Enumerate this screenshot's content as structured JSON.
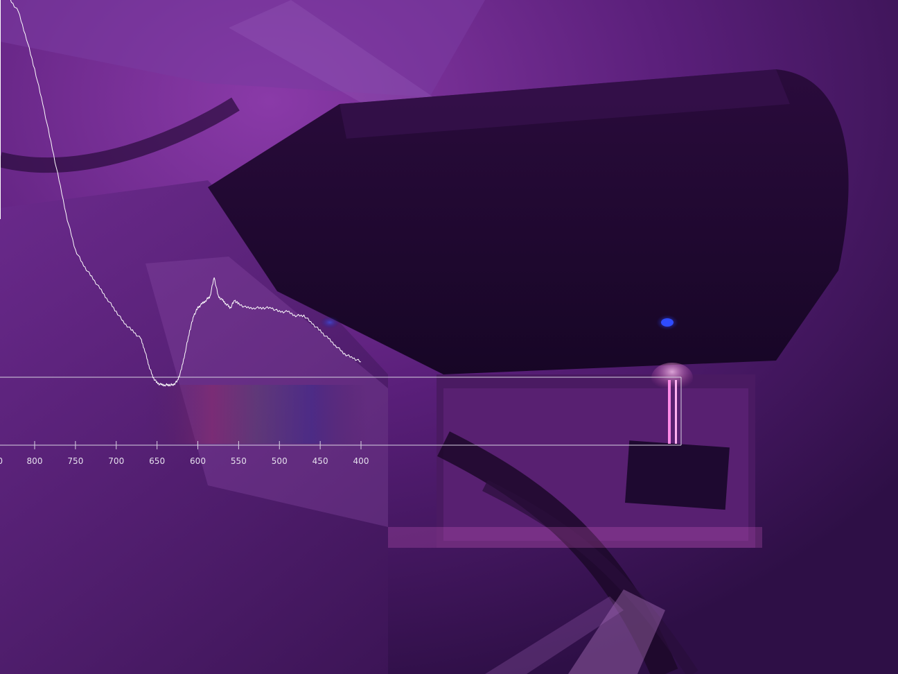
{
  "scene": {
    "description_hidden": false,
    "accent_color": "#ff7fe0",
    "led_color": "#1a3cff"
  },
  "spectrum_overlay": {
    "trace_color": "#ffffff",
    "axis_color": "#d8d2e2",
    "x_ticks": [
      "800",
      "750",
      "700",
      "650",
      "600",
      "550",
      "500",
      "450",
      "400"
    ],
    "partial_left_tick": "0"
  },
  "chart_data": {
    "type": "line",
    "title": "",
    "xlabel": "",
    "ylabel": "",
    "x_direction": "descending",
    "xlim": [
      830,
      390
    ],
    "ylim": [
      0,
      1
    ],
    "grid": false,
    "series": [
      {
        "x": [
          830,
          820,
          810,
          800,
          790,
          780,
          770,
          760,
          750,
          740,
          730,
          720,
          710,
          700,
          690,
          680,
          670,
          665,
          660,
          655,
          650,
          645,
          640,
          635,
          630,
          625,
          620,
          615,
          610,
          605,
          600,
          595,
          590,
          585,
          580,
          575,
          570,
          565,
          560,
          555,
          550,
          540,
          530,
          520,
          510,
          500,
          490,
          480,
          470,
          460,
          450,
          440,
          430,
          420,
          410,
          400
        ],
        "y": [
          1.0,
          0.97,
          0.9,
          0.82,
          0.73,
          0.63,
          0.53,
          0.43,
          0.35,
          0.31,
          0.28,
          0.25,
          0.22,
          0.19,
          0.16,
          0.14,
          0.12,
          0.09,
          0.05,
          0.02,
          0.005,
          0.0,
          0.0,
          0.0,
          0.0,
          0.01,
          0.04,
          0.09,
          0.14,
          0.18,
          0.2,
          0.21,
          0.22,
          0.23,
          0.28,
          0.23,
          0.22,
          0.21,
          0.2,
          0.22,
          0.21,
          0.2,
          0.2,
          0.2,
          0.2,
          0.19,
          0.19,
          0.18,
          0.18,
          0.16,
          0.14,
          0.12,
          0.1,
          0.08,
          0.07,
          0.06
        ]
      }
    ]
  }
}
